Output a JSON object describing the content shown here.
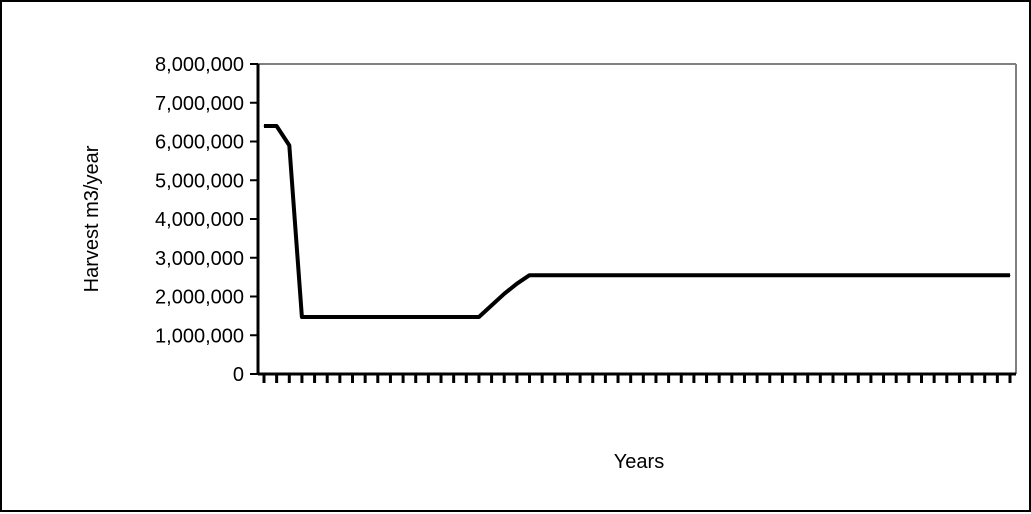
{
  "chart_data": {
    "type": "line",
    "title": "",
    "xlabel": "Years",
    "ylabel": "Harvest m3/year",
    "ylim": [
      0,
      8000000
    ],
    "y_ticks": [
      0,
      1000000,
      2000000,
      3000000,
      4000000,
      5000000,
      6000000,
      7000000,
      8000000
    ],
    "y_tick_labels": [
      "0",
      "1,000,000",
      "2,000,000",
      "3,000,000",
      "4,000,000",
      "5,000,000",
      "6,000,000",
      "7,000,000",
      "8,000,000"
    ],
    "x_tick_labels": [
      "",
      "",
      "",
      "",
      "",
      "",
      "",
      "",
      "",
      "",
      "",
      ""
    ],
    "x": [
      0,
      1,
      2,
      3,
      4,
      5,
      6,
      7,
      8,
      9,
      10,
      11,
      12,
      13,
      14,
      15,
      16,
      17,
      18,
      19,
      20,
      21,
      22,
      23,
      24,
      25,
      26,
      27,
      28,
      29,
      30,
      31,
      32,
      33,
      34,
      35,
      36,
      37,
      38,
      39,
      40,
      41,
      42,
      43,
      44,
      45,
      46,
      47,
      48,
      49,
      50,
      51,
      52,
      53,
      54,
      55,
      56,
      57,
      58,
      59
    ],
    "series": [
      {
        "name": "",
        "values": [
          6400000,
          6400000,
          5900000,
          1470000,
          1470000,
          1470000,
          1470000,
          1470000,
          1470000,
          1470000,
          1470000,
          1470000,
          1470000,
          1470000,
          1470000,
          1470000,
          1470000,
          1470000,
          1770000,
          2070000,
          2330000,
          2550000,
          2550000,
          2550000,
          2550000,
          2550000,
          2550000,
          2550000,
          2550000,
          2550000,
          2550000,
          2550000,
          2550000,
          2550000,
          2550000,
          2550000,
          2550000,
          2550000,
          2550000,
          2550000,
          2550000,
          2550000,
          2550000,
          2550000,
          2550000,
          2550000,
          2550000,
          2550000,
          2550000,
          2550000,
          2550000,
          2550000,
          2550000,
          2550000,
          2550000,
          2550000,
          2550000,
          2550000,
          2550000,
          2550000
        ]
      }
    ],
    "grid": false,
    "legend": "none",
    "line_color": "#000000",
    "plot_border_color": "#808080"
  }
}
